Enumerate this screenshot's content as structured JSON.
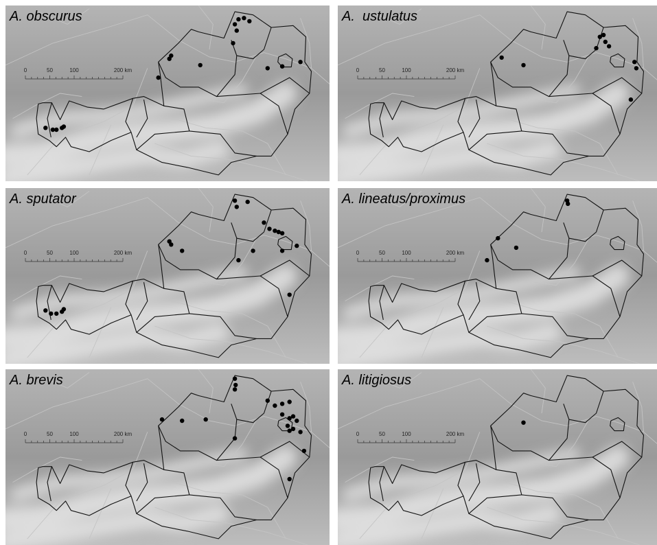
{
  "panels": [
    {
      "title": "A. obscurus",
      "points": [
        [
          9.8,
          47.15
        ],
        [
          10.0,
          47.12
        ],
        [
          10.1,
          47.12
        ],
        [
          10.25,
          47.15
        ],
        [
          10.3,
          47.17
        ],
        [
          13.2,
          48.25
        ],
        [
          13.25,
          48.3
        ],
        [
          14.05,
          48.15
        ],
        [
          12.9,
          47.95
        ],
        [
          15.0,
          48.8
        ],
        [
          15.05,
          48.7
        ],
        [
          15.1,
          48.88
        ],
        [
          15.25,
          48.9
        ],
        [
          15.4,
          48.85
        ],
        [
          14.95,
          48.5
        ],
        [
          15.9,
          48.1
        ],
        [
          16.3,
          48.13
        ],
        [
          16.8,
          48.2
        ]
      ]
    },
    {
      "title": "A.  ustulatus",
      "points": [
        [
          13.2,
          48.27
        ],
        [
          13.8,
          48.15
        ],
        [
          15.9,
          48.6
        ],
        [
          16.0,
          48.63
        ],
        [
          16.05,
          48.52
        ],
        [
          16.15,
          48.45
        ],
        [
          15.8,
          48.42
        ],
        [
          16.85,
          48.2
        ],
        [
          16.9,
          48.1
        ],
        [
          16.75,
          47.6
        ]
      ]
    },
    {
      "title": "A. sputator",
      "points": [
        [
          9.8,
          47.15
        ],
        [
          9.95,
          47.1
        ],
        [
          10.1,
          47.1
        ],
        [
          10.25,
          47.13
        ],
        [
          10.3,
          47.17
        ],
        [
          13.2,
          48.25
        ],
        [
          13.25,
          48.2
        ],
        [
          13.55,
          48.1
        ],
        [
          15.0,
          48.9
        ],
        [
          15.05,
          48.8
        ],
        [
          15.35,
          48.88
        ],
        [
          15.8,
          48.55
        ],
        [
          15.95,
          48.45
        ],
        [
          16.1,
          48.42
        ],
        [
          16.2,
          48.4
        ],
        [
          16.3,
          48.38
        ],
        [
          15.5,
          48.1
        ],
        [
          15.1,
          47.95
        ],
        [
          16.3,
          48.1
        ],
        [
          16.7,
          48.18
        ],
        [
          16.5,
          47.4
        ]
      ]
    },
    {
      "title": "A. lineatus/proximus",
      "points": [
        [
          13.1,
          48.3
        ],
        [
          13.6,
          48.15
        ],
        [
          12.8,
          47.95
        ],
        [
          15.0,
          48.9
        ],
        [
          15.02,
          48.85
        ]
      ]
    },
    {
      "title": "A. brevis",
      "points": [
        [
          13.0,
          48.3
        ],
        [
          13.55,
          48.28
        ],
        [
          14.2,
          48.3
        ],
        [
          15.0,
          48.95
        ],
        [
          15.02,
          48.85
        ],
        [
          15.0,
          48.78
        ],
        [
          15.9,
          48.6
        ],
        [
          16.1,
          48.52
        ],
        [
          16.3,
          48.55
        ],
        [
          16.5,
          48.58
        ],
        [
          16.3,
          48.38
        ],
        [
          16.5,
          48.32
        ],
        [
          16.6,
          48.35
        ],
        [
          16.7,
          48.28
        ],
        [
          16.45,
          48.2
        ],
        [
          16.5,
          48.12
        ],
        [
          16.6,
          48.15
        ],
        [
          16.8,
          48.1
        ],
        [
          16.9,
          47.8
        ],
        [
          15.0,
          48.0
        ],
        [
          16.5,
          47.35
        ]
      ]
    },
    {
      "title": "A. litigiosus",
      "points": [
        [
          13.8,
          48.25
        ]
      ]
    }
  ],
  "scalebar": {
    "ticks": [
      "0",
      "50",
      "100",
      "200 km"
    ],
    "tick_km": [
      0,
      50,
      100,
      200
    ]
  },
  "colors": {
    "background": "#9a9a9a",
    "alps": "#e4e4e4",
    "rivers": "#c4c4c4",
    "borders": "#111111",
    "points": "#000000"
  }
}
